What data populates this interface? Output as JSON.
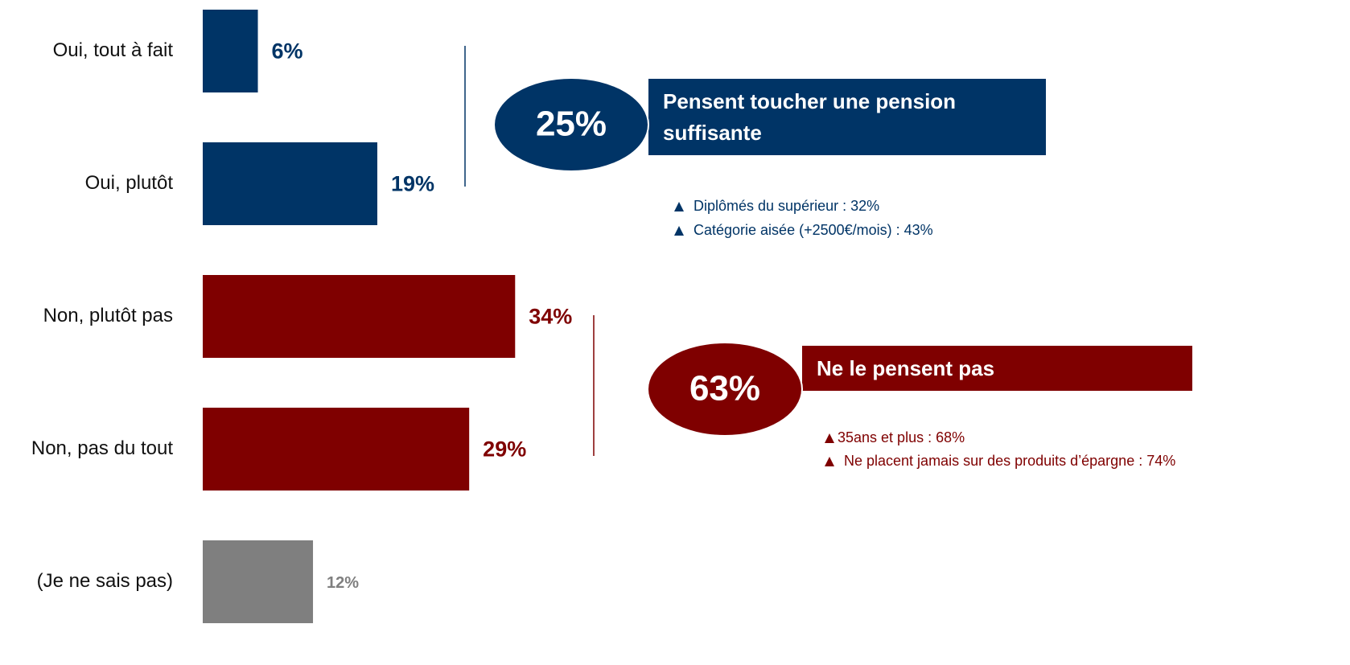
{
  "chart_data": {
    "type": "barh",
    "categories": [
      "Oui, tout à fait",
      "Oui, plutôt",
      "Non, plutôt pas",
      "Non, pas du tout",
      "(Je ne sais pas)"
    ],
    "values": [
      6,
      19,
      34,
      29,
      12
    ],
    "value_labels": [
      "6%",
      "19%",
      "34%",
      "29%",
      "12%"
    ],
    "colors": [
      "#003466",
      "#003466",
      "#7f0000",
      "#7f0000",
      "#7f7f7f"
    ],
    "annotations": [
      {
        "value": 25,
        "value_label": "25%",
        "color": "#003466",
        "label": [
          "Pensent toucher une pension",
          "suffisante"
        ],
        "notes": [
          "Diplômés du supérieur : 32%",
          "Catégorie aisée (+2500€/mois) : 43%"
        ]
      },
      {
        "value": 63,
        "value_label": "63%",
        "color": "#7f0000",
        "label": [
          "Ne le pensent pas"
        ],
        "notes": [
          "35ans et plus : 68%",
          "Ne placent jamais sur des produits d’épargne : 74%"
        ]
      }
    ]
  }
}
